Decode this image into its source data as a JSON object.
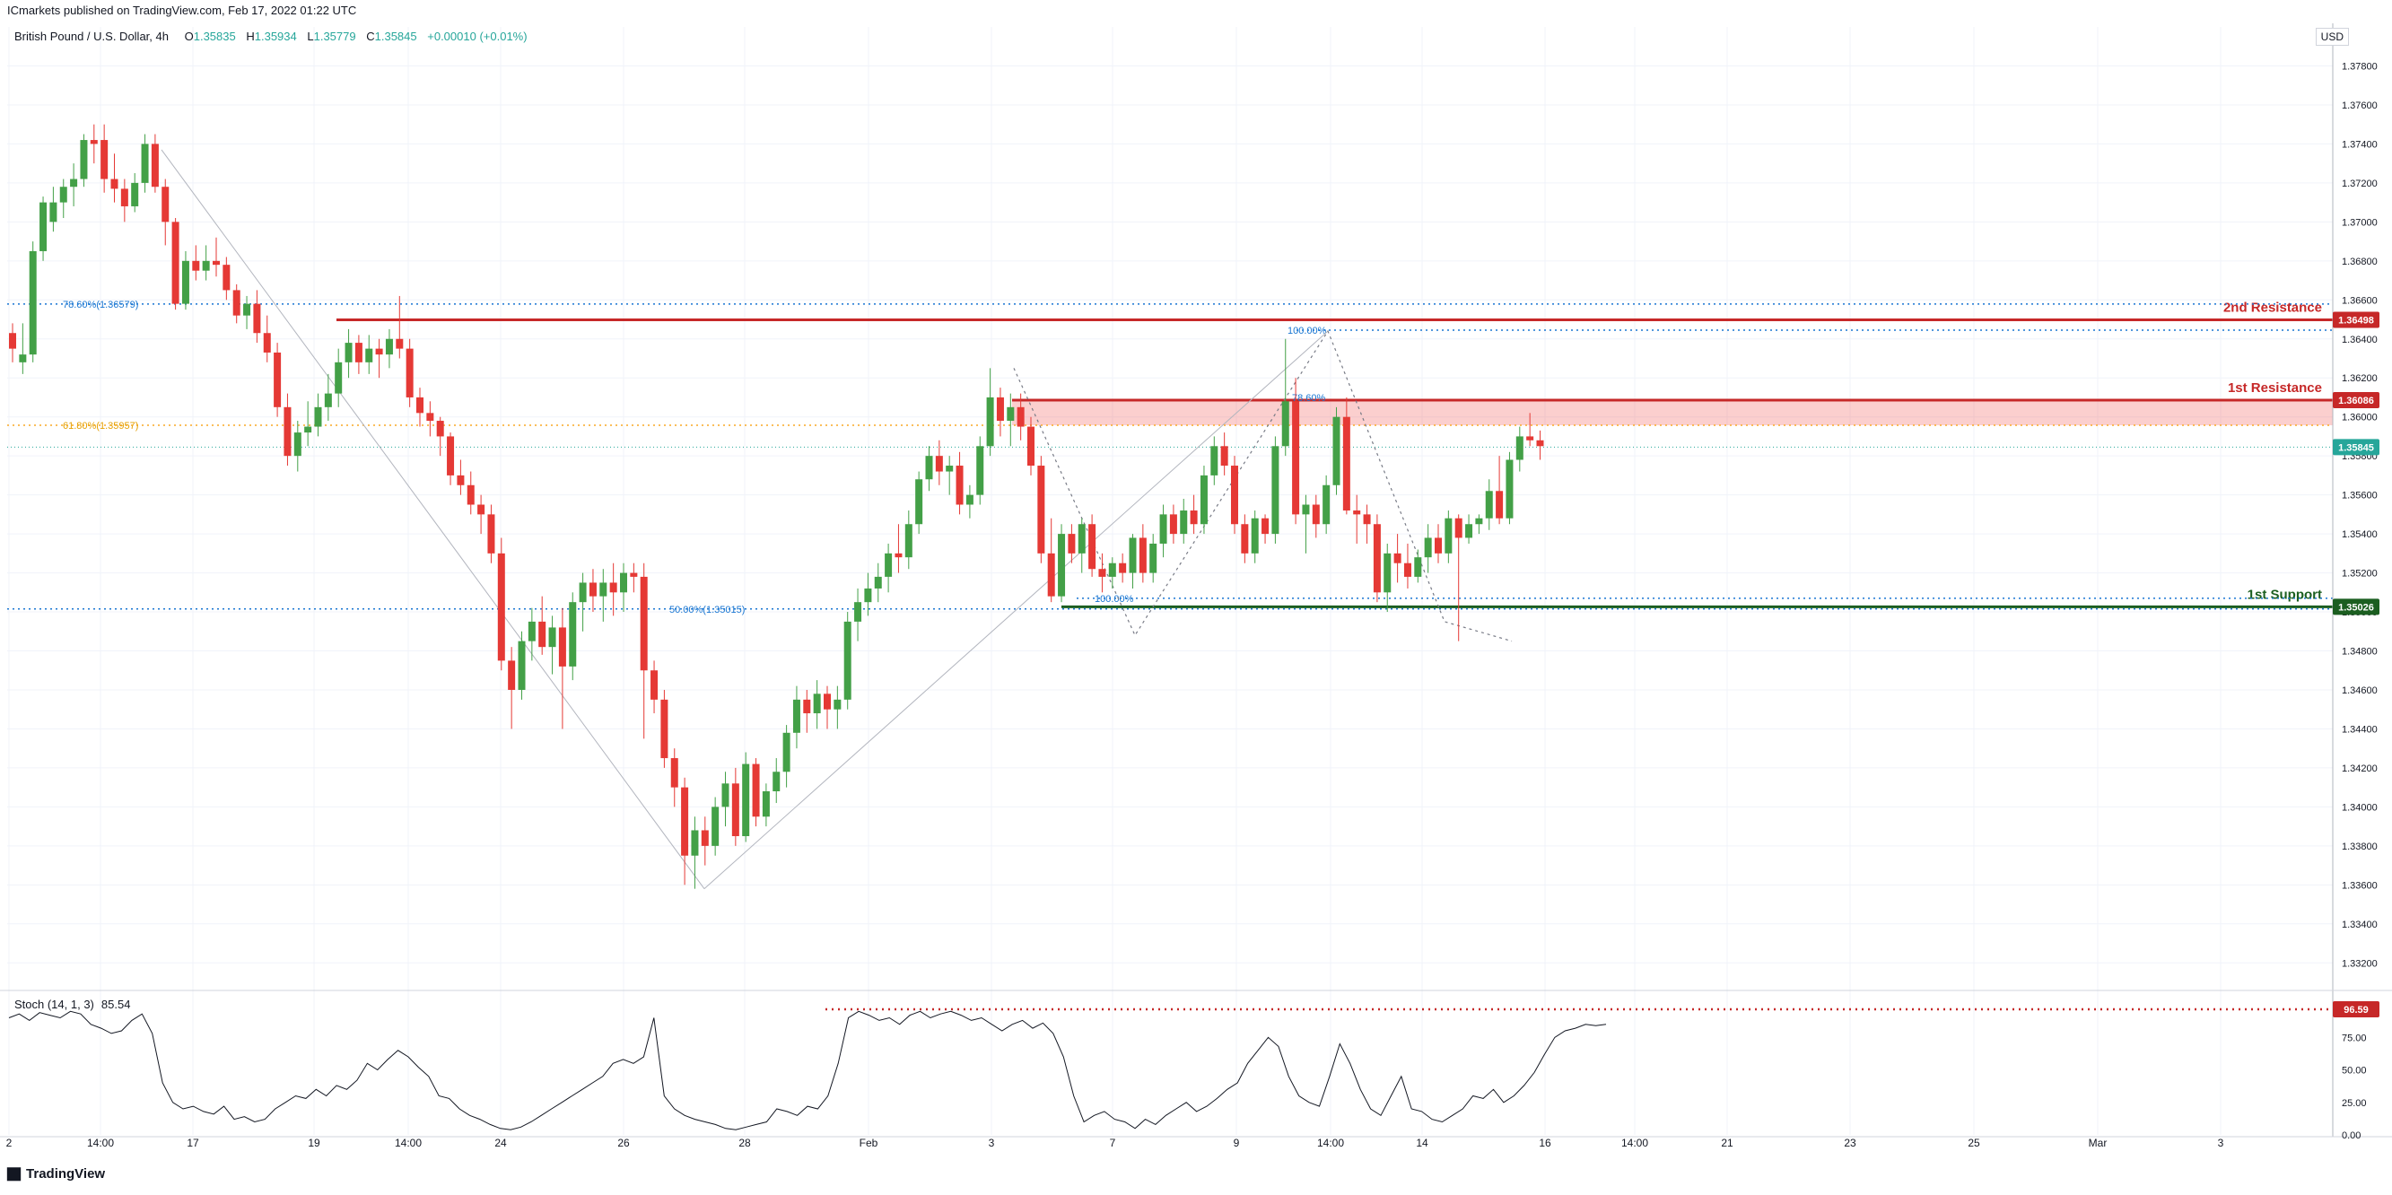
{
  "header": {
    "published": "ICmarkets published on TradingView.com, Feb 17, 2022 01:22 UTC",
    "symbol": "British Pound / U.S. Dollar, 4h",
    "ohlc": [
      {
        "k": "O",
        "v": "1.35835"
      },
      {
        "k": "H",
        "v": "1.35934"
      },
      {
        "k": "L",
        "v": "1.35779"
      },
      {
        "k": "C",
        "v": "1.35845"
      }
    ],
    "change": "+0.00010 (+0.01%)",
    "currency": "USD"
  },
  "stoch_legend": {
    "label": "Stoch (14, 1, 3)",
    "value": "85.54"
  },
  "footer": {
    "logo": "TradingView"
  },
  "colors": {
    "up": "#26a69a",
    "up_bar": "#43a047",
    "down": "#e53935",
    "resistance": "#c62828",
    "support": "#1b5e20",
    "fib": "#1976d2",
    "fib618": "#f9a825",
    "grid": "#f0f3fa"
  },
  "chart_data": {
    "type": "candlestick",
    "timeframe": "4h",
    "symbol": "GBPUSD",
    "ylim": [
      1.331,
      1.38
    ],
    "y_ticks": [
      "1.37800",
      "1.37600",
      "1.37400",
      "1.37200",
      "1.37000",
      "1.36800",
      "1.36600",
      "1.36400",
      "1.36200",
      "1.36000",
      "1.35800",
      "1.35600",
      "1.35400",
      "1.35200",
      "1.35000",
      "1.34800",
      "1.34600",
      "1.34400",
      "1.34200",
      "1.34000",
      "1.33800",
      "1.33600",
      "1.33400",
      "1.33200"
    ],
    "x_ticks": [
      "2",
      "14:00",
      "17",
      "19",
      "14:00",
      "24",
      "26",
      "28",
      "Feb",
      "3",
      "7",
      "9",
      "14:00",
      "14",
      "16",
      "14:00",
      "21",
      "23",
      "25",
      "Mar",
      "3"
    ],
    "ohlc": [
      [
        1.3643,
        1.3648,
        1.3628,
        1.3635
      ],
      [
        1.3628,
        1.3648,
        1.3622,
        1.3632
      ],
      [
        1.3632,
        1.369,
        1.3628,
        1.3685
      ],
      [
        1.3685,
        1.3713,
        1.368,
        1.371
      ],
      [
        1.37,
        1.3718,
        1.3695,
        1.371
      ],
      [
        1.371,
        1.3722,
        1.3702,
        1.3718
      ],
      [
        1.3718,
        1.373,
        1.3708,
        1.3722
      ],
      [
        1.3722,
        1.3745,
        1.3718,
        1.3742
      ],
      [
        1.3742,
        1.375,
        1.373,
        1.374
      ],
      [
        1.3742,
        1.375,
        1.3715,
        1.3722
      ],
      [
        1.3722,
        1.3735,
        1.371,
        1.3717
      ],
      [
        1.3717,
        1.3722,
        1.37,
        1.3708
      ],
      [
        1.3708,
        1.3725,
        1.3705,
        1.372
      ],
      [
        1.372,
        1.3745,
        1.3715,
        1.374
      ],
      [
        1.374,
        1.3745,
        1.3715,
        1.3718
      ],
      [
        1.3718,
        1.3722,
        1.3688,
        1.37
      ],
      [
        1.37,
        1.3702,
        1.3655,
        1.3658
      ],
      [
        1.3658,
        1.3685,
        1.3655,
        1.368
      ],
      [
        1.368,
        1.3688,
        1.367,
        1.3675
      ],
      [
        1.3675,
        1.3688,
        1.367,
        1.368
      ],
      [
        1.368,
        1.3692,
        1.3672,
        1.3678
      ],
      [
        1.3678,
        1.3682,
        1.366,
        1.3665
      ],
      [
        1.3665,
        1.3668,
        1.3648,
        1.3652
      ],
      [
        1.3652,
        1.3662,
        1.3645,
        1.3658
      ],
      [
        1.3658,
        1.3665,
        1.3638,
        1.3643
      ],
      [
        1.3643,
        1.3652,
        1.3628,
        1.3633
      ],
      [
        1.3633,
        1.3638,
        1.36,
        1.3605
      ],
      [
        1.3605,
        1.3612,
        1.3575,
        1.358
      ],
      [
        1.358,
        1.3598,
        1.3572,
        1.3592
      ],
      [
        1.3592,
        1.3608,
        1.3585,
        1.3595
      ],
      [
        1.3595,
        1.3612,
        1.359,
        1.3605
      ],
      [
        1.3605,
        1.3622,
        1.3598,
        1.3612
      ],
      [
        1.3612,
        1.3635,
        1.3605,
        1.3628
      ],
      [
        1.3628,
        1.3645,
        1.362,
        1.3638
      ],
      [
        1.3638,
        1.3642,
        1.3622,
        1.3628
      ],
      [
        1.3628,
        1.3642,
        1.3622,
        1.3635
      ],
      [
        1.3635,
        1.364,
        1.362,
        1.3632
      ],
      [
        1.3632,
        1.3645,
        1.3625,
        1.364
      ],
      [
        1.364,
        1.3662,
        1.363,
        1.3635
      ],
      [
        1.3635,
        1.364,
        1.3605,
        1.361
      ],
      [
        1.361,
        1.3615,
        1.3595,
        1.3602
      ],
      [
        1.3602,
        1.3608,
        1.359,
        1.3598
      ],
      [
        1.3598,
        1.36,
        1.358,
        1.359
      ],
      [
        1.359,
        1.3592,
        1.3565,
        1.357
      ],
      [
        1.357,
        1.3578,
        1.356,
        1.3565
      ],
      [
        1.3565,
        1.3572,
        1.355,
        1.3555
      ],
      [
        1.3555,
        1.356,
        1.354,
        1.355
      ],
      [
        1.355,
        1.3555,
        1.3525,
        1.353
      ],
      [
        1.353,
        1.3538,
        1.347,
        1.3475
      ],
      [
        1.3475,
        1.3482,
        1.344,
        1.346
      ],
      [
        1.346,
        1.349,
        1.3455,
        1.3485
      ],
      [
        1.3485,
        1.3502,
        1.3475,
        1.3495
      ],
      [
        1.3495,
        1.3508,
        1.3478,
        1.3482
      ],
      [
        1.3482,
        1.3498,
        1.3468,
        1.3492
      ],
      [
        1.3492,
        1.3502,
        1.344,
        1.3472
      ],
      [
        1.3472,
        1.351,
        1.3465,
        1.3505
      ],
      [
        1.3505,
        1.352,
        1.349,
        1.3515
      ],
      [
        1.3515,
        1.3522,
        1.35,
        1.3508
      ],
      [
        1.3508,
        1.3522,
        1.3495,
        1.3515
      ],
      [
        1.3515,
        1.3525,
        1.3498,
        1.351
      ],
      [
        1.351,
        1.3525,
        1.35,
        1.352
      ],
      [
        1.352,
        1.3525,
        1.351,
        1.3518
      ],
      [
        1.3518,
        1.3525,
        1.3435,
        1.347
      ],
      [
        1.347,
        1.3475,
        1.3448,
        1.3455
      ],
      [
        1.3455,
        1.346,
        1.342,
        1.3425
      ],
      [
        1.3425,
        1.343,
        1.34,
        1.341
      ],
      [
        1.341,
        1.3415,
        1.336,
        1.3375
      ],
      [
        1.3375,
        1.3395,
        1.3358,
        1.3388
      ],
      [
        1.3388,
        1.3395,
        1.337,
        1.338
      ],
      [
        1.338,
        1.3405,
        1.3375,
        1.34
      ],
      [
        1.34,
        1.3418,
        1.339,
        1.3412
      ],
      [
        1.3412,
        1.342,
        1.338,
        1.3385
      ],
      [
        1.3385,
        1.3428,
        1.3382,
        1.3422
      ],
      [
        1.3422,
        1.3425,
        1.339,
        1.3395
      ],
      [
        1.3395,
        1.3412,
        1.339,
        1.3408
      ],
      [
        1.3408,
        1.3425,
        1.3402,
        1.3418
      ],
      [
        1.3418,
        1.3442,
        1.341,
        1.3438
      ],
      [
        1.3438,
        1.3462,
        1.343,
        1.3455
      ],
      [
        1.3455,
        1.346,
        1.3438,
        1.3448
      ],
      [
        1.3448,
        1.3465,
        1.344,
        1.3458
      ],
      [
        1.3458,
        1.3462,
        1.344,
        1.345
      ],
      [
        1.345,
        1.3462,
        1.344,
        1.3455
      ],
      [
        1.3455,
        1.35,
        1.345,
        1.3495
      ],
      [
        1.3495,
        1.3512,
        1.3485,
        1.3505
      ],
      [
        1.3505,
        1.352,
        1.3498,
        1.3512
      ],
      [
        1.3512,
        1.3525,
        1.3505,
        1.3518
      ],
      [
        1.3518,
        1.3535,
        1.351,
        1.353
      ],
      [
        1.353,
        1.3545,
        1.352,
        1.3528
      ],
      [
        1.3528,
        1.3552,
        1.3522,
        1.3545
      ],
      [
        1.3545,
        1.3572,
        1.354,
        1.3568
      ],
      [
        1.3568,
        1.3585,
        1.3562,
        1.358
      ],
      [
        1.358,
        1.3588,
        1.3565,
        1.3572
      ],
      [
        1.3572,
        1.358,
        1.356,
        1.3575
      ],
      [
        1.3575,
        1.3582,
        1.355,
        1.3555
      ],
      [
        1.3555,
        1.3565,
        1.3548,
        1.356
      ],
      [
        1.356,
        1.359,
        1.3555,
        1.3585
      ],
      [
        1.3585,
        1.3625,
        1.358,
        1.361
      ],
      [
        1.361,
        1.3615,
        1.359,
        1.3598
      ],
      [
        1.3598,
        1.3612,
        1.3585,
        1.3605
      ],
      [
        1.3605,
        1.3612,
        1.3588,
        1.3595
      ],
      [
        1.3595,
        1.36,
        1.357,
        1.3575
      ],
      [
        1.3575,
        1.358,
        1.3525,
        1.353
      ],
      [
        1.353,
        1.3548,
        1.3505,
        1.3508
      ],
      [
        1.3508,
        1.3545,
        1.3505,
        1.354
      ],
      [
        1.354,
        1.3545,
        1.3525,
        1.353
      ],
      [
        1.353,
        1.3548,
        1.352,
        1.3545
      ],
      [
        1.3545,
        1.355,
        1.3518,
        1.3522
      ],
      [
        1.3522,
        1.353,
        1.351,
        1.3518
      ],
      [
        1.3518,
        1.3528,
        1.3512,
        1.3525
      ],
      [
        1.3525,
        1.353,
        1.3515,
        1.352
      ],
      [
        1.352,
        1.354,
        1.3512,
        1.3538
      ],
      [
        1.3538,
        1.3545,
        1.3515,
        1.352
      ],
      [
        1.352,
        1.354,
        1.3515,
        1.3535
      ],
      [
        1.3535,
        1.3555,
        1.3528,
        1.355
      ],
      [
        1.355,
        1.3555,
        1.3535,
        1.354
      ],
      [
        1.354,
        1.3558,
        1.3535,
        1.3552
      ],
      [
        1.3552,
        1.356,
        1.354,
        1.3545
      ],
      [
        1.3545,
        1.3575,
        1.354,
        1.357
      ],
      [
        1.357,
        1.359,
        1.3565,
        1.3585
      ],
      [
        1.3585,
        1.3592,
        1.357,
        1.3575
      ],
      [
        1.3575,
        1.358,
        1.354,
        1.3545
      ],
      [
        1.3545,
        1.355,
        1.3525,
        1.353
      ],
      [
        1.353,
        1.3552,
        1.3525,
        1.3548
      ],
      [
        1.3548,
        1.355,
        1.3535,
        1.354
      ],
      [
        1.354,
        1.359,
        1.3535,
        1.3585
      ],
      [
        1.3585,
        1.364,
        1.358,
        1.3608
      ],
      [
        1.3608,
        1.362,
        1.3545,
        1.355
      ],
      [
        1.355,
        1.356,
        1.353,
        1.3555
      ],
      [
        1.3555,
        1.356,
        1.3538,
        1.3545
      ],
      [
        1.3545,
        1.357,
        1.354,
        1.3565
      ],
      [
        1.3565,
        1.3605,
        1.356,
        1.36
      ],
      [
        1.36,
        1.361,
        1.355,
        1.3552
      ],
      [
        1.3552,
        1.356,
        1.3535,
        1.355
      ],
      [
        1.355,
        1.3555,
        1.3535,
        1.3545
      ],
      [
        1.3545,
        1.355,
        1.3505,
        1.351
      ],
      [
        1.351,
        1.3535,
        1.35,
        1.353
      ],
      [
        1.353,
        1.354,
        1.3515,
        1.3525
      ],
      [
        1.3525,
        1.3535,
        1.3512,
        1.3518
      ],
      [
        1.3518,
        1.3532,
        1.3515,
        1.3528
      ],
      [
        1.3528,
        1.3545,
        1.352,
        1.3538
      ],
      [
        1.3538,
        1.3545,
        1.3525,
        1.353
      ],
      [
        1.353,
        1.3552,
        1.3525,
        1.3548
      ],
      [
        1.3548,
        1.355,
        1.3485,
        1.3538
      ],
      [
        1.3538,
        1.355,
        1.3535,
        1.3545
      ],
      [
        1.3545,
        1.355,
        1.354,
        1.3548
      ],
      [
        1.3548,
        1.3568,
        1.3542,
        1.3562
      ],
      [
        1.3562,
        1.358,
        1.3545,
        1.3548
      ],
      [
        1.3548,
        1.3582,
        1.3545,
        1.3578
      ],
      [
        1.3578,
        1.3595,
        1.3572,
        1.359
      ],
      [
        1.359,
        1.3602,
        1.3585,
        1.3588
      ],
      [
        1.3588,
        1.3593,
        1.3578,
        1.3585
      ]
    ],
    "levels": [
      {
        "name": "2nd Resistance",
        "price": 1.36498,
        "tag": "1.36498"
      },
      {
        "name": "1st Resistance",
        "price": 1.36086,
        "tag": "1.36086"
      },
      {
        "name": "1st Support",
        "price": 1.35026,
        "tag": "1.35026"
      }
    ],
    "resistance_zone": [
      1.35957,
      1.36086
    ],
    "last_price": {
      "price": 1.35845,
      "tag": "1.35845"
    },
    "fib_labels": [
      {
        "text": "78.60%(1.36579)",
        "price": 1.36579
      },
      {
        "text": "61.80%(1.35957)",
        "price": 1.35957
      },
      {
        "text": "50.00%(1.35015)",
        "price": 1.35015
      },
      {
        "text": "100.00%",
        "price": 1.36445
      },
      {
        "text": "78.60%",
        "price": 1.361
      },
      {
        "text": "100.00%",
        "price": 1.3507
      }
    ],
    "stochastic": {
      "ylim": [
        0,
        100
      ],
      "y_ticks": [
        "75.00",
        "50.00",
        "25.00",
        "0.00"
      ],
      "overbought_tag": "96.59",
      "overbought_level": 96.59,
      "values": [
        90,
        93,
        88,
        94,
        92,
        90,
        95,
        93,
        85,
        82,
        78,
        80,
        88,
        93,
        78,
        40,
        25,
        20,
        22,
        18,
        16,
        22,
        12,
        14,
        10,
        12,
        20,
        25,
        30,
        28,
        35,
        30,
        38,
        35,
        42,
        55,
        50,
        58,
        65,
        60,
        52,
        45,
        30,
        28,
        20,
        15,
        12,
        8,
        5,
        4,
        6,
        10,
        15,
        20,
        25,
        30,
        35,
        40,
        45,
        55,
        58,
        55,
        60,
        90,
        30,
        20,
        15,
        12,
        10,
        8,
        5,
        4,
        6,
        8,
        10,
        20,
        18,
        15,
        22,
        20,
        30,
        55,
        90,
        95,
        92,
        88,
        90,
        85,
        92,
        95,
        90,
        93,
        95,
        92,
        88,
        90,
        85,
        80,
        85,
        88,
        82,
        86,
        78,
        60,
        30,
        10,
        15,
        18,
        12,
        10,
        5,
        12,
        8,
        15,
        20,
        25,
        18,
        22,
        28,
        35,
        40,
        55,
        65,
        75,
        68,
        45,
        30,
        25,
        22,
        45,
        70,
        55,
        35,
        20,
        15,
        30,
        45,
        20,
        18,
        12,
        10,
        15,
        20,
        30,
        28,
        35,
        25,
        30,
        38,
        48,
        62,
        75,
        80,
        82,
        85,
        84,
        85
      ]
    }
  }
}
